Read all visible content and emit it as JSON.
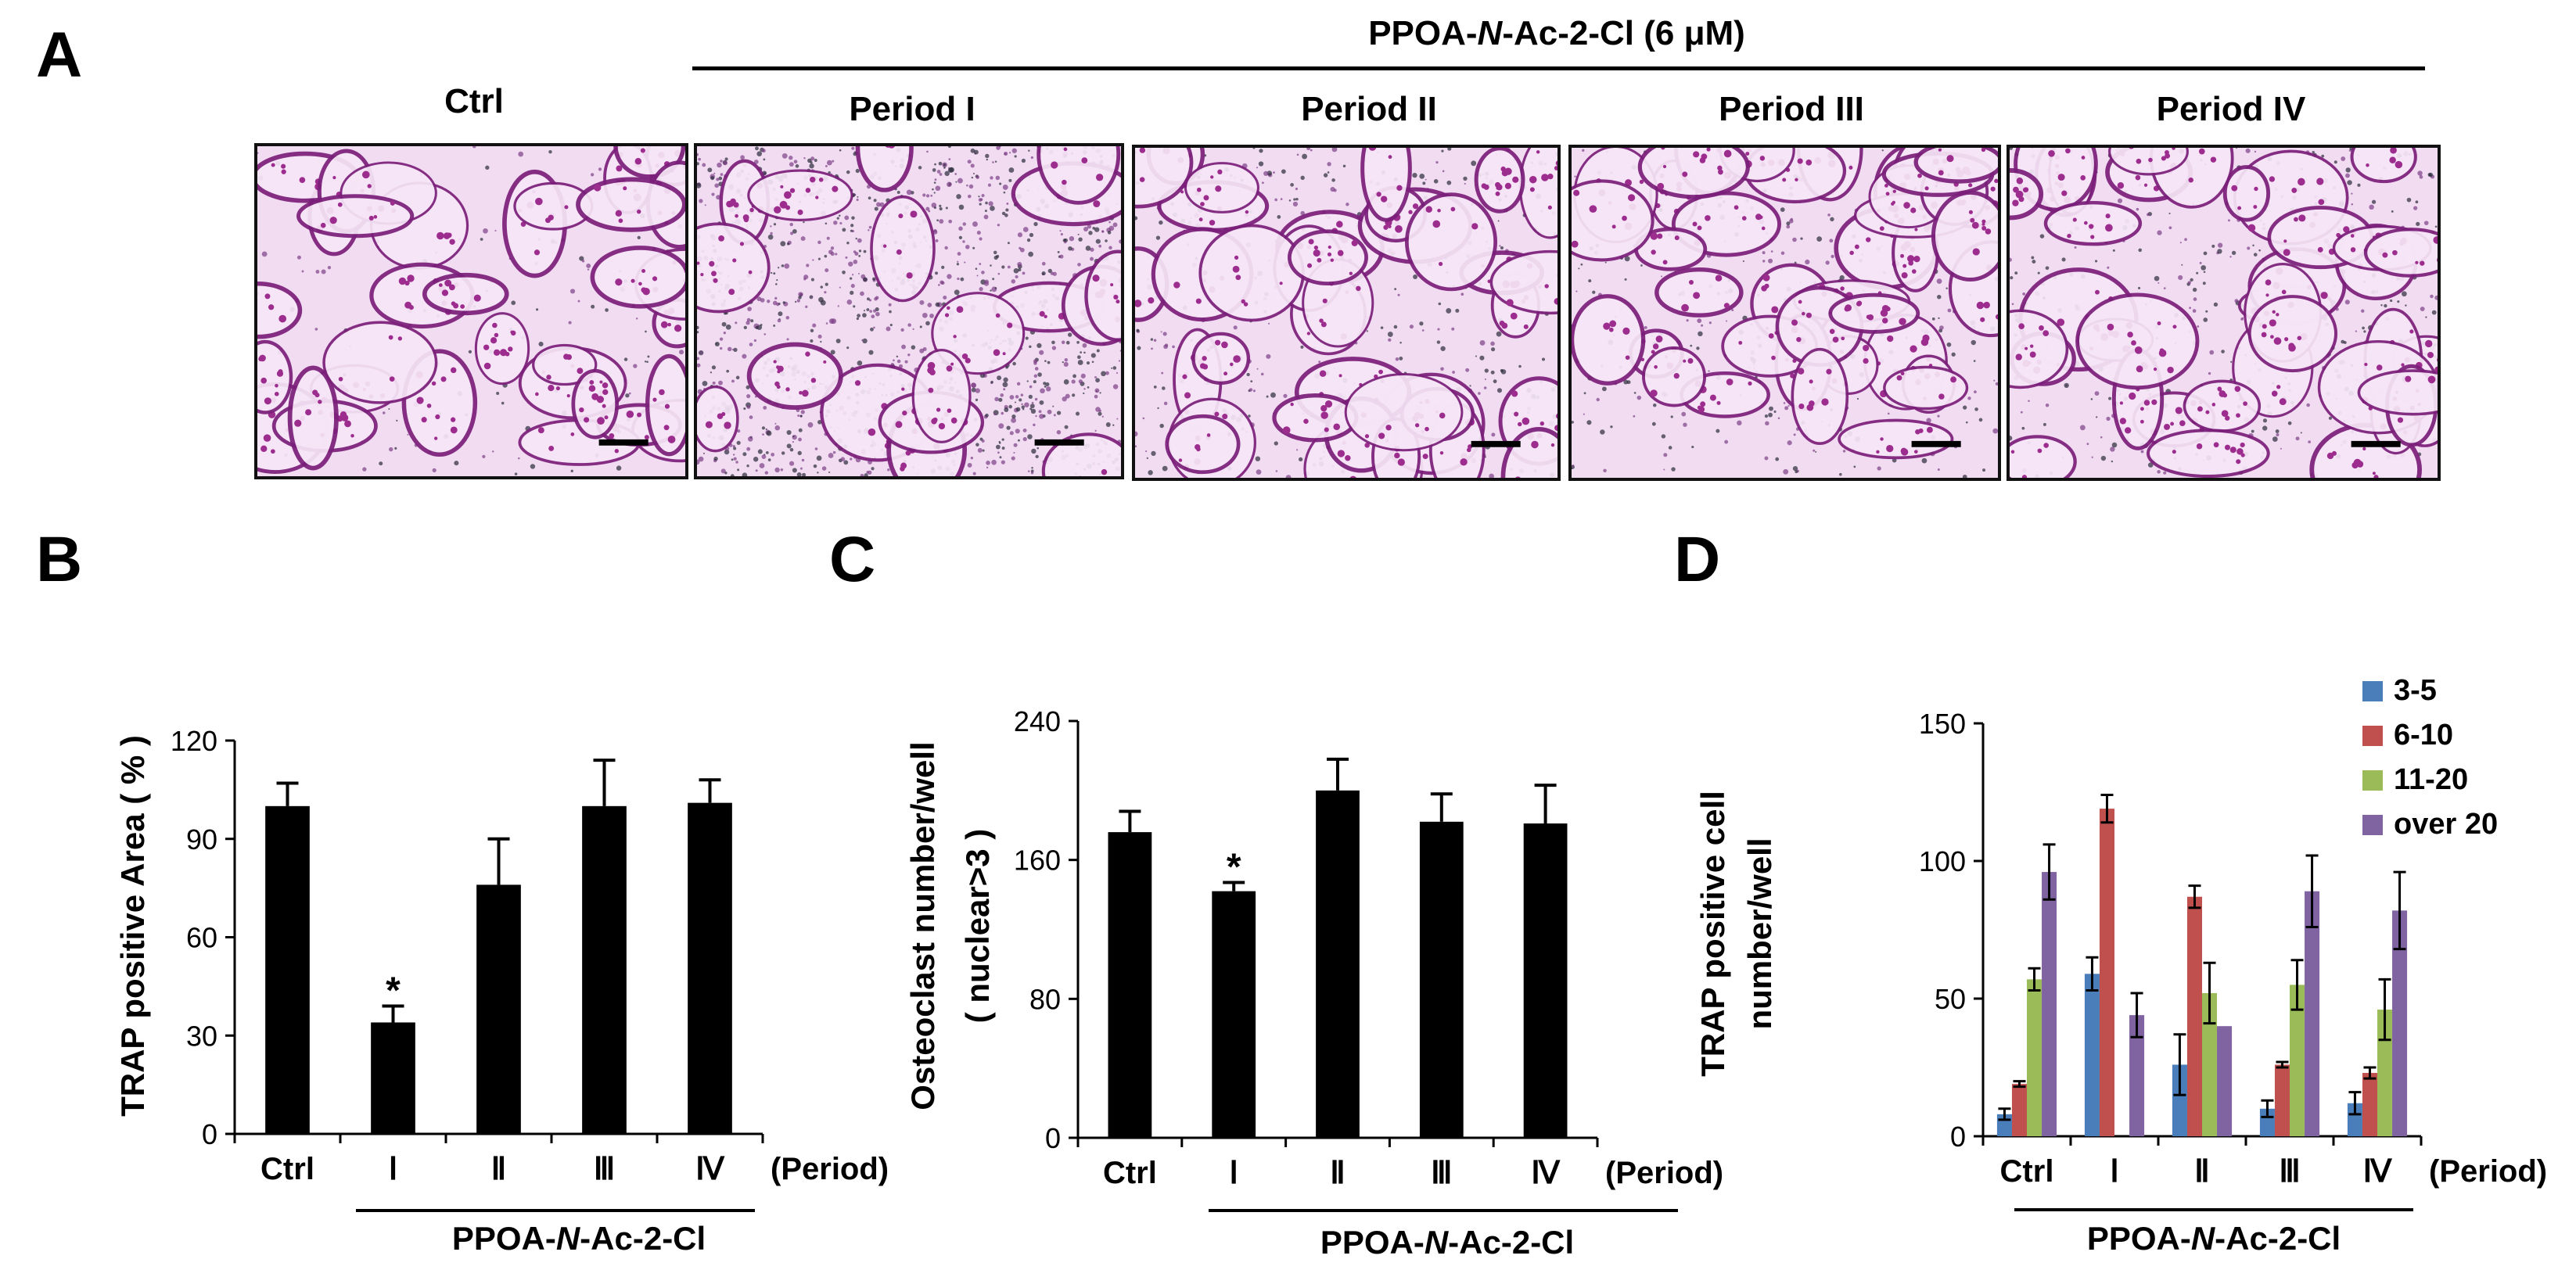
{
  "panels": {
    "A": "A",
    "B": "B",
    "C": "C",
    "D": "D"
  },
  "panelA": {
    "treatment_header": "PPOA-N-Ac-2-Cl (6 μM)",
    "columns": [
      "Ctrl",
      "Period I",
      "Period II",
      "Period III",
      "Period IV"
    ]
  },
  "colors": {
    "bar": "#000000",
    "s1": "#4a7ebb",
    "s2": "#c0504d",
    "s3": "#9bbb59",
    "s4": "#8064a2",
    "stain": "#b5269e"
  },
  "chart_data": [
    {
      "panel": "B",
      "type": "bar",
      "categories": [
        "Ctrl",
        "I",
        "II",
        "III",
        "IV"
      ],
      "values": [
        100,
        34,
        76,
        100,
        101
      ],
      "errors": [
        7,
        5,
        14,
        14,
        7
      ],
      "significance": [
        "",
        "*",
        "",
        "",
        ""
      ],
      "ylabel": "TRAP positive Area ( % )",
      "xlabel": "(Period)",
      "group_label": "PPOA-N-Ac-2-Cl",
      "ylim": [
        0,
        120
      ],
      "yticks": [
        0,
        30,
        60,
        90,
        120
      ]
    },
    {
      "panel": "C",
      "type": "bar",
      "categories": [
        "Ctrl",
        "I",
        "II",
        "III",
        "IV"
      ],
      "values": [
        176,
        142,
        200,
        182,
        181
      ],
      "errors": [
        12,
        5,
        18,
        16,
        22
      ],
      "significance": [
        "",
        "*",
        "",
        "",
        ""
      ],
      "ylabel": "Osteoclast number/well",
      "ylabel2": "( nuclear>3 )",
      "xlabel": "(Period)",
      "group_label": "PPOA-N-Ac-2-Cl",
      "ylim": [
        0,
        240
      ],
      "yticks": [
        0,
        80,
        160,
        240
      ]
    },
    {
      "panel": "D",
      "type": "bar",
      "categories": [
        "Ctrl",
        "I",
        "II",
        "III",
        "IV"
      ],
      "series": [
        {
          "name": "3-5",
          "values": [
            8,
            59,
            26,
            10,
            12
          ],
          "errors": [
            2,
            6,
            11,
            3,
            4
          ]
        },
        {
          "name": "6-10",
          "values": [
            19,
            119,
            87,
            26,
            23
          ],
          "errors": [
            1,
            5,
            4,
            1,
            2
          ]
        },
        {
          "name": "11-20",
          "values": [
            57,
            0,
            52,
            55,
            46
          ],
          "errors": [
            4,
            0,
            11,
            9,
            11
          ]
        },
        {
          "name": "over 20",
          "values": [
            96,
            44,
            40,
            89,
            82
          ],
          "errors": [
            10,
            8,
            0,
            13,
            14
          ]
        }
      ],
      "ylabel": "TRAP positive cell",
      "ylabel2": "number/well",
      "xlabel": "(Period)",
      "group_label": "PPOA-N-Ac-2-Cl",
      "legend_position": "top-right",
      "ylim": [
        0,
        150
      ],
      "yticks": [
        0,
        50,
        100,
        150
      ]
    }
  ]
}
